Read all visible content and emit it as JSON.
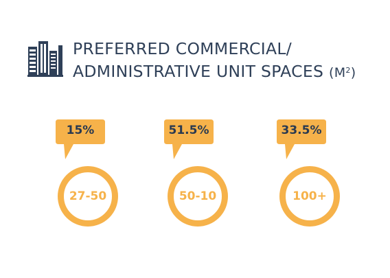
{
  "colors": {
    "accent": "#f6b24a",
    "dark": "#2f4058",
    "label_text": "#2a3a50"
  },
  "header": {
    "icon": "buildings-icon",
    "title_line1": "PREFERRED COMMERCIAL/",
    "title_line2": "ADMINISTRATIVE UNIT SPACES",
    "unit_open": "(M",
    "unit_sup": "2",
    "unit_close": ")"
  },
  "chart_data": {
    "type": "bar",
    "title": "PREFERRED COMMERCIAL/ ADMINISTRATIVE UNIT SPACES (M2)",
    "categories": [
      "27-50",
      "50-10",
      "100+"
    ],
    "values": [
      15,
      51.5,
      33.5
    ],
    "value_labels": [
      "15%",
      "51.5%",
      "33.5%"
    ],
    "unit": "%"
  }
}
